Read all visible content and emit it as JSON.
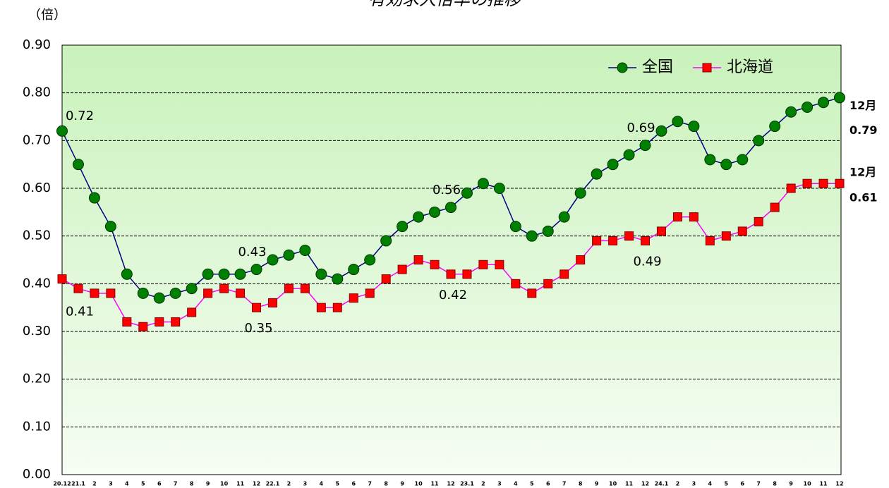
{
  "chart_data": {
    "type": "line",
    "title": "有効求人倍率の推移",
    "y_label": "（倍）",
    "categories": [
      "20.12",
      "21.1",
      "2",
      "3",
      "4",
      "5",
      "6",
      "7",
      "8",
      "9",
      "10",
      "11",
      "12",
      "22.1",
      "2",
      "3",
      "4",
      "5",
      "6",
      "7",
      "8",
      "9",
      "10",
      "11",
      "12",
      "23.1",
      "2",
      "3",
      "4",
      "5",
      "6",
      "7",
      "8",
      "9",
      "10",
      "11",
      "12",
      "24.1",
      "2",
      "3",
      "4",
      "5",
      "6",
      "7",
      "8",
      "9",
      "10",
      "11",
      "12"
    ],
    "series": [
      {
        "name": "全国",
        "color": "#000080",
        "marker": "circle",
        "marker_color": "#008000",
        "end_label": "12月",
        "values": [
          0.72,
          0.65,
          0.58,
          0.52,
          0.42,
          0.38,
          0.37,
          0.38,
          0.39,
          0.42,
          0.42,
          0.42,
          0.43,
          0.45,
          0.46,
          0.47,
          0.42,
          0.41,
          0.43,
          0.45,
          0.49,
          0.52,
          0.54,
          0.55,
          0.56,
          0.59,
          0.61,
          0.6,
          0.52,
          0.5,
          0.51,
          0.54,
          0.59,
          0.63,
          0.65,
          0.67,
          0.69,
          0.72,
          0.74,
          0.73,
          0.66,
          0.65,
          0.66,
          0.7,
          0.73,
          0.76,
          0.77,
          0.78,
          0.79
        ],
        "value_labels": [
          "0.72",
          null,
          null,
          null,
          null,
          null,
          null,
          null,
          null,
          null,
          null,
          null,
          "0.43",
          null,
          null,
          null,
          null,
          null,
          null,
          null,
          null,
          null,
          null,
          null,
          "0.56",
          null,
          null,
          null,
          null,
          null,
          null,
          null,
          null,
          null,
          null,
          null,
          "0.69",
          null,
          null,
          null,
          null,
          null,
          null,
          null,
          null,
          null,
          null,
          null,
          "0.79"
        ]
      },
      {
        "name": "北海道",
        "color": "#ff00ff",
        "marker": "square",
        "marker_color": "#ff0000",
        "end_label": "12月",
        "values": [
          0.41,
          0.39,
          0.38,
          0.38,
          0.32,
          0.31,
          0.32,
          0.32,
          0.34,
          0.38,
          0.39,
          0.38,
          0.35,
          0.36,
          0.39,
          0.39,
          0.35,
          0.35,
          0.37,
          0.38,
          0.41,
          0.43,
          0.45,
          0.44,
          0.42,
          0.42,
          0.44,
          0.44,
          0.4,
          0.38,
          0.4,
          0.42,
          0.45,
          0.49,
          0.49,
          0.5,
          0.49,
          0.51,
          0.54,
          0.54,
          0.49,
          0.5,
          0.51,
          0.53,
          0.56,
          0.6,
          0.61,
          0.61,
          0.61
        ],
        "value_labels": [
          "0.41",
          null,
          null,
          null,
          null,
          null,
          null,
          null,
          null,
          null,
          null,
          null,
          "0.35",
          null,
          null,
          null,
          null,
          null,
          null,
          null,
          null,
          null,
          null,
          null,
          "0.42",
          null,
          null,
          null,
          null,
          null,
          null,
          null,
          null,
          null,
          null,
          null,
          "0.49",
          null,
          null,
          null,
          null,
          null,
          null,
          null,
          null,
          null,
          null,
          null,
          "0.61"
        ]
      }
    ],
    "ylim": [
      0,
      0.9
    ],
    "yticks": [
      {
        "value": 0,
        "label": "0.00"
      },
      {
        "value": 0.1,
        "label": "0.10"
      },
      {
        "value": 0.2,
        "label": "0.20"
      },
      {
        "value": 0.3,
        "label": "0.30"
      },
      {
        "value": 0.4,
        "label": "0.40"
      },
      {
        "value": 0.5,
        "label": "0.50"
      },
      {
        "value": 0.6,
        "label": "0.60"
      },
      {
        "value": 0.7,
        "label": "0.70"
      },
      {
        "value": 0.8,
        "label": "0.80"
      },
      {
        "value": 0.9,
        "label": "0.90"
      }
    ],
    "grid": true,
    "legend": "top-right"
  }
}
